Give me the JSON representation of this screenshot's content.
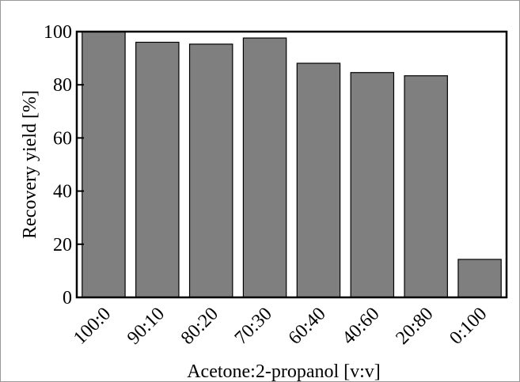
{
  "chart_data": {
    "type": "bar",
    "categories": [
      "100:0",
      "90:10",
      "80:20",
      "70:30",
      "60:40",
      "40:60",
      "20:80",
      "0:100"
    ],
    "values": [
      100.0,
      96.0,
      95.3,
      97.6,
      88.1,
      84.6,
      83.4,
      14.3
    ],
    "title": "",
    "xlabel": "Acetone:2-propanol [v:v]",
    "ylabel": "Recovery yield [%]",
    "ylim": [
      0,
      100
    ],
    "yticks": [
      0,
      20,
      40,
      60,
      80,
      100
    ],
    "grid": false,
    "bar_color": "#7f7f7f",
    "edge_color": "#000000"
  }
}
